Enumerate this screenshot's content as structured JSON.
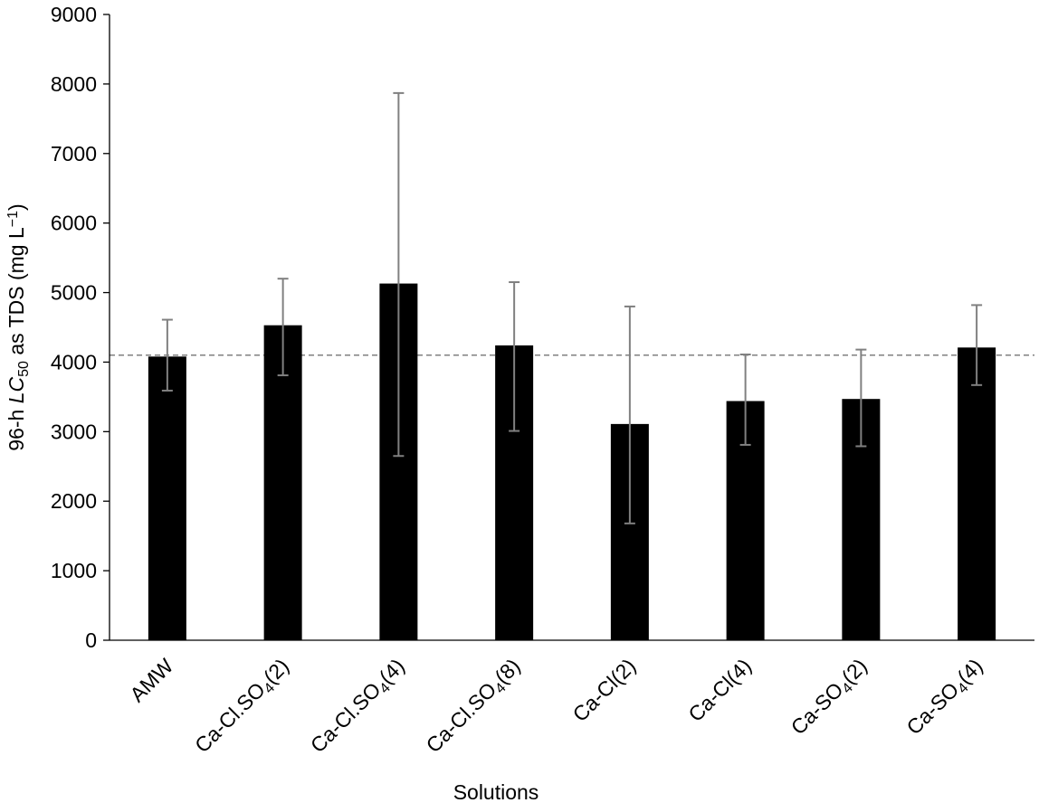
{
  "chart_data": {
    "type": "bar",
    "xlabel": "Solutions",
    "ylabel": {
      "parts": [
        {
          "text": "96-h ",
          "style": "normal"
        },
        {
          "text": "LC",
          "style": "italic"
        },
        {
          "text": "50",
          "style": "sub"
        },
        {
          "text": " as TDS (mg L",
          "style": "normal"
        },
        {
          "text": "−1",
          "style": "sup"
        },
        {
          "text": ")",
          "style": "normal"
        }
      ]
    },
    "ylim": [
      0,
      9000
    ],
    "yticks": [
      0,
      1000,
      2000,
      3000,
      4000,
      5000,
      6000,
      7000,
      8000,
      9000
    ],
    "grid": false,
    "reference_line": {
      "y": 4100,
      "style": "dashed",
      "color": "#808080"
    },
    "bar_color": "#000000",
    "error_color": "#808080",
    "categories": [
      {
        "parts": [
          {
            "text": "AMW",
            "style": "normal"
          }
        ]
      },
      {
        "parts": [
          {
            "text": "Ca-Cl.SO",
            "style": "normal"
          },
          {
            "text": "4",
            "style": "sub"
          },
          {
            "text": "(2)",
            "style": "normal"
          }
        ]
      },
      {
        "parts": [
          {
            "text": "Ca-Cl.SO",
            "style": "normal"
          },
          {
            "text": "4",
            "style": "sub"
          },
          {
            "text": "(4)",
            "style": "normal"
          }
        ]
      },
      {
        "parts": [
          {
            "text": "Ca-Cl.SO",
            "style": "normal"
          },
          {
            "text": "4",
            "style": "sub"
          },
          {
            "text": "(8)",
            "style": "normal"
          }
        ]
      },
      {
        "parts": [
          {
            "text": "Ca-Cl(2)",
            "style": "normal"
          }
        ]
      },
      {
        "parts": [
          {
            "text": "Ca-Cl(4)",
            "style": "normal"
          }
        ]
      },
      {
        "parts": [
          {
            "text": "Ca-SO",
            "style": "normal"
          },
          {
            "text": "4",
            "style": "sub"
          },
          {
            "text": "(2)",
            "style": "normal"
          }
        ]
      },
      {
        "parts": [
          {
            "text": "Ca-SO",
            "style": "normal"
          },
          {
            "text": "4",
            "style": "sub"
          },
          {
            "text": "(4)",
            "style": "normal"
          }
        ]
      }
    ],
    "values": [
      4080,
      4530,
      5130,
      4240,
      3110,
      3440,
      3470,
      4210
    ],
    "error_low": [
      3590,
      3810,
      2650,
      3010,
      1680,
      2810,
      2790,
      3670
    ],
    "error_high": [
      4610,
      5200,
      7870,
      5150,
      4800,
      4110,
      4180,
      4820
    ]
  }
}
